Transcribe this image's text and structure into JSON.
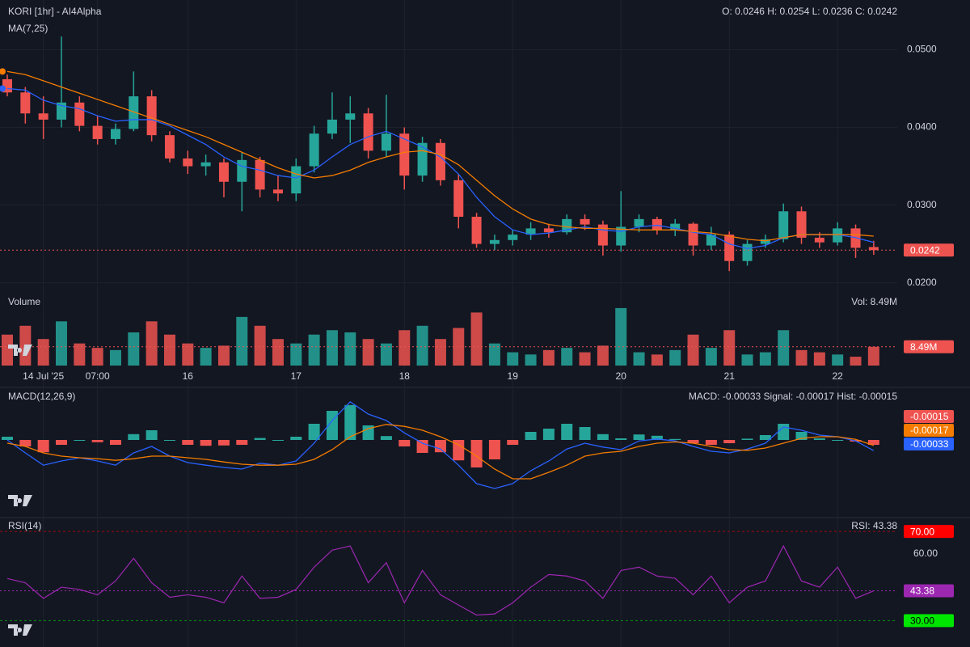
{
  "chart_data": {
    "type": "candlestick",
    "title": "KORI [1hr] - AI4Alpha",
    "subtitle": "MA(7,25)",
    "ohlc_text": "O: 0.0246 H: 0.0254 L: 0.0236 C: 0.0242",
    "categories": [
      null,
      null,
      "14 Jul '25",
      null,
      null,
      "07:00",
      null,
      null,
      null,
      null,
      "16",
      null,
      null,
      null,
      null,
      null,
      "17",
      null,
      null,
      null,
      null,
      null,
      "18",
      null,
      null,
      null,
      null,
      null,
      "19",
      null,
      null,
      null,
      null,
      null,
      "20",
      null,
      null,
      null,
      null,
      null,
      "21",
      null,
      null,
      null,
      null,
      null,
      "22",
      null,
      null
    ],
    "candles": [
      [
        0.0462,
        0.0468,
        0.044,
        0.0445
      ],
      [
        0.0445,
        0.0452,
        0.0405,
        0.0418
      ],
      [
        0.0418,
        0.044,
        0.0385,
        0.041
      ],
      [
        0.041,
        0.0517,
        0.04,
        0.0432
      ],
      [
        0.0432,
        0.044,
        0.0395,
        0.0402
      ],
      [
        0.0402,
        0.0415,
        0.0378,
        0.0385
      ],
      [
        0.0385,
        0.0405,
        0.0378,
        0.0398
      ],
      [
        0.0398,
        0.0472,
        0.0395,
        0.044
      ],
      [
        0.044,
        0.0448,
        0.0382,
        0.039
      ],
      [
        0.039,
        0.0395,
        0.0355,
        0.036
      ],
      [
        0.036,
        0.037,
        0.034,
        0.035
      ],
      [
        0.035,
        0.0365,
        0.0338,
        0.0355
      ],
      [
        0.0355,
        0.036,
        0.031,
        0.033
      ],
      [
        0.033,
        0.0368,
        0.0292,
        0.0358
      ],
      [
        0.0358,
        0.0362,
        0.031,
        0.032
      ],
      [
        0.032,
        0.0338,
        0.0305,
        0.0315
      ],
      [
        0.0315,
        0.036,
        0.0305,
        0.035
      ],
      [
        0.035,
        0.0402,
        0.0342,
        0.0392
      ],
      [
        0.0392,
        0.0445,
        0.0385,
        0.041
      ],
      [
        0.041,
        0.044,
        0.038,
        0.0418
      ],
      [
        0.0418,
        0.0425,
        0.036,
        0.037
      ],
      [
        0.037,
        0.0442,
        0.0362,
        0.0392
      ],
      [
        0.0392,
        0.04,
        0.032,
        0.0338
      ],
      [
        0.0338,
        0.0388,
        0.033,
        0.038
      ],
      [
        0.038,
        0.0385,
        0.0325,
        0.0332
      ],
      [
        0.0332,
        0.034,
        0.027,
        0.0285
      ],
      [
        0.0285,
        0.029,
        0.0245,
        0.025
      ],
      [
        0.025,
        0.0262,
        0.0242,
        0.0255
      ],
      [
        0.0255,
        0.0268,
        0.0248,
        0.0262
      ],
      [
        0.0262,
        0.0278,
        0.0255,
        0.027
      ],
      [
        0.027,
        0.0276,
        0.0258,
        0.0265
      ],
      [
        0.0265,
        0.0288,
        0.0262,
        0.0282
      ],
      [
        0.0282,
        0.0288,
        0.0268,
        0.0275
      ],
      [
        0.0275,
        0.028,
        0.0235,
        0.0248
      ],
      [
        0.0248,
        0.0318,
        0.024,
        0.0272
      ],
      [
        0.0272,
        0.0288,
        0.0265,
        0.0282
      ],
      [
        0.0282,
        0.0285,
        0.0262,
        0.0268
      ],
      [
        0.0268,
        0.0282,
        0.026,
        0.0276
      ],
      [
        0.0276,
        0.0278,
        0.0235,
        0.0248
      ],
      [
        0.0248,
        0.0272,
        0.0242,
        0.0262
      ],
      [
        0.0262,
        0.0266,
        0.0215,
        0.0228
      ],
      [
        0.0228,
        0.0255,
        0.0222,
        0.025
      ],
      [
        0.025,
        0.0262,
        0.0245,
        0.0256
      ],
      [
        0.0256,
        0.0302,
        0.0252,
        0.0292
      ],
      [
        0.0292,
        0.0298,
        0.025,
        0.0258
      ],
      [
        0.0258,
        0.0265,
        0.0245,
        0.0252
      ],
      [
        0.0252,
        0.0278,
        0.0248,
        0.027
      ],
      [
        0.027,
        0.0275,
        0.0232,
        0.0245
      ],
      [
        0.0246,
        0.0254,
        0.0236,
        0.0242
      ]
    ],
    "up_color": "#26a69a",
    "down_color": "#ef5350",
    "ylim": [
      0.0184,
      0.0564
    ],
    "yticks": [
      {
        "value": 0.05,
        "label": "0.0500"
      },
      {
        "value": 0.04,
        "label": "0.0400"
      },
      {
        "value": 0.03,
        "label": "0.0300"
      },
      {
        "value": 0.02,
        "label": "0.0200"
      }
    ],
    "grid": true,
    "ma_lines": [
      {
        "color": "#2962ff",
        "values": [
          0.045,
          0.0448,
          0.0435,
          0.0428,
          0.0424,
          0.0415,
          0.0408,
          0.041,
          0.041,
          0.0402,
          0.039,
          0.0378,
          0.0362,
          0.035,
          0.0345,
          0.0338,
          0.0335,
          0.0345,
          0.0362,
          0.0378,
          0.0388,
          0.0395,
          0.0385,
          0.0375,
          0.0362,
          0.034,
          0.031,
          0.0285,
          0.0268,
          0.0262,
          0.0264,
          0.0268,
          0.0272,
          0.0268,
          0.0266,
          0.0272,
          0.0274,
          0.027,
          0.0265,
          0.0262,
          0.025,
          0.0244,
          0.0248,
          0.0258,
          0.0262,
          0.0262,
          0.0262,
          0.0258,
          0.0252
        ]
      },
      {
        "color": "#f57c00",
        "values": [
          0.0472,
          0.0468,
          0.046,
          0.0452,
          0.0444,
          0.0436,
          0.0428,
          0.042,
          0.0412,
          0.0404,
          0.0396,
          0.0388,
          0.0378,
          0.0368,
          0.0358,
          0.0348,
          0.034,
          0.0335,
          0.0338,
          0.0345,
          0.0355,
          0.0362,
          0.0368,
          0.037,
          0.0365,
          0.0352,
          0.0332,
          0.0312,
          0.0295,
          0.0282,
          0.0275,
          0.0272,
          0.027,
          0.027,
          0.0269,
          0.0268,
          0.0268,
          0.0268,
          0.0266,
          0.0264,
          0.026,
          0.0256,
          0.0254,
          0.0258,
          0.0262,
          0.0262,
          0.0262,
          0.0262,
          0.026
        ]
      }
    ],
    "volume": {
      "label": "Volume",
      "summary": "Vol: 8.49M",
      "last_label": "8.49M",
      "ylim": [
        0,
        30000000
      ],
      "values": [
        14000000,
        18000000,
        12000000,
        20000000,
        10000000,
        8000000,
        7000000,
        15000000,
        20000000,
        14000000,
        10000000,
        8000000,
        9000000,
        22000000,
        18000000,
        12000000,
        10000000,
        14000000,
        16000000,
        15000000,
        12000000,
        10000000,
        16000000,
        18000000,
        12000000,
        17000000,
        24000000,
        10000000,
        6000000,
        5000000,
        7000000,
        8000000,
        6000000,
        9000000,
        26000000,
        6000000,
        5000000,
        7000000,
        14000000,
        8000000,
        16000000,
        5000000,
        6000000,
        16000000,
        7000000,
        6000000,
        5000000,
        4000000,
        8490000
      ]
    },
    "macd": {
      "label": "MACD(12,26,9)",
      "summary": "MACD: -0.00033 Signal: -0.00017 Hist: -0.00015",
      "ylim": [
        -0.0017,
        0.0013
      ],
      "macd": {
        "color": "#2962ff",
        "values": [
          0,
          -0.0004,
          -0.00078,
          -0.00065,
          -0.00055,
          -0.00065,
          -0.00078,
          -0.0004,
          -0.0002,
          -0.0005,
          -0.0007,
          -0.00078,
          -0.00085,
          -0.0009,
          -0.00072,
          -0.00078,
          -0.00065,
          -0.0001,
          0.0006,
          0.00118,
          0.0008,
          0.0006,
          0.00022,
          -0.0001,
          -0.00028,
          -0.00078,
          -0.00135,
          -0.0015,
          -0.00135,
          -0.00095,
          -0.00065,
          -0.00028,
          -0.0001,
          -0.00022,
          -0.0003,
          -3e-05,
          3e-05,
          -3e-05,
          -0.0002,
          -0.00035,
          -0.0004,
          -0.00028,
          -0.0001,
          0.0004,
          0.0003,
          0.00015,
          0.0001,
          -3e-05,
          -0.00033
        ]
      },
      "signal": {
        "color": "#f57c00",
        "values": [
          -0.0001,
          -0.0002,
          -0.0004,
          -0.0005,
          -0.00055,
          -0.00058,
          -0.00063,
          -0.00058,
          -0.0005,
          -0.0005,
          -0.00055,
          -0.0006,
          -0.00068,
          -0.00075,
          -0.00078,
          -0.00078,
          -0.00075,
          -0.0006,
          -0.0003,
          0.0001,
          0.00035,
          0.00048,
          0.00042,
          0.0003,
          0.0001,
          -0.00015,
          -0.0005,
          -0.0009,
          -0.0012,
          -0.0012,
          -0.001,
          -0.00078,
          -0.0005,
          -0.0004,
          -0.00035,
          -0.0002,
          -0.0001,
          -6e-05,
          -0.0001,
          -0.0002,
          -0.0003,
          -0.00032,
          -0.00025,
          -0.0001,
          5e-05,
          0.0001,
          0.0001,
          2e-05,
          -0.00017
        ]
      },
      "hist": [
        0.0001,
        -0.0002,
        -0.00038,
        -0.00015,
        0,
        -7e-05,
        -0.00015,
        0.00018,
        0.0003,
        0,
        -0.00015,
        -0.00018,
        -0.00017,
        -0.00015,
        6e-05,
        0,
        0.0001,
        0.0005,
        0.0009,
        0.00108,
        0.00045,
        0.00012,
        -0.0002,
        -0.0004,
        -0.00038,
        -0.00063,
        -0.00085,
        -0.0006,
        -0.00015,
        0.00025,
        0.00035,
        0.0005,
        0.0004,
        0.00018,
        5e-05,
        0.00017,
        0.00013,
        3e-05,
        -0.0001,
        -0.00015,
        -0.0001,
        4e-05,
        0.00015,
        0.0005,
        0.00025,
        5e-05,
        0,
        -5e-05,
        -0.00015
      ]
    },
    "rsi": {
      "label": "RSI(14)",
      "summary": "RSI: 43.38",
      "color": "#9c27b0",
      "ylim": [
        20,
        74.4
      ],
      "yticks": [
        {
          "value": 60,
          "label": "60.00"
        }
      ],
      "levels": [
        {
          "value": 70,
          "label": "70.00",
          "color": "#ff0000"
        },
        {
          "value": 30,
          "label": "30.00",
          "color": "#00e600"
        }
      ],
      "values": [
        48.9,
        47,
        40,
        45,
        44,
        41.6,
        47.8,
        58,
        47,
        40.5,
        41.6,
        40.5,
        38,
        50,
        40,
        40.5,
        44,
        54,
        61.6,
        63.5,
        47,
        56,
        38,
        52.5,
        41.6,
        37,
        32.5,
        33,
        38,
        45,
        50.7,
        50,
        47.8,
        40,
        52.5,
        54,
        50,
        49,
        41.6,
        50,
        38,
        45,
        47.8,
        63.5,
        47.8,
        45,
        54,
        40,
        43.38
      ]
    }
  }
}
